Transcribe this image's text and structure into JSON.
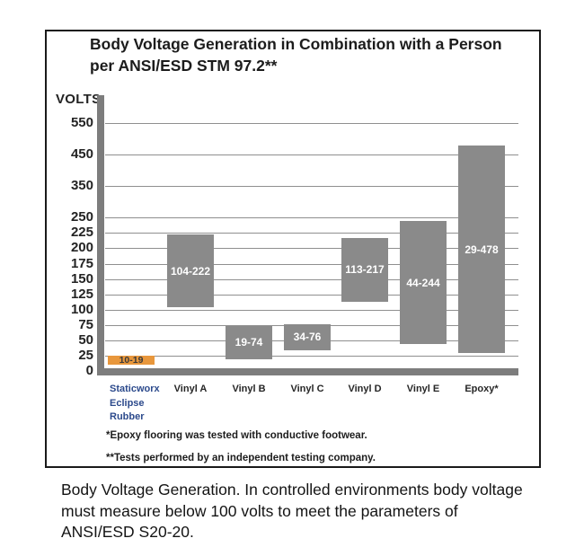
{
  "chart_data": {
    "type": "bar",
    "subtype": "floating_range_bars",
    "title": "Body Voltage Generation in Combination with a Person per ANSI/ESD STM 97.2**",
    "title_lines": [
      "Body Voltage Generation in Combination with a Person",
      "per ANSI/ESD STM 97.2**"
    ],
    "ylabel": "VOLTS",
    "xlabel": "",
    "ylim": [
      0,
      600
    ],
    "yticks": [
      0,
      25,
      50,
      75,
      100,
      125,
      150,
      175,
      200,
      225,
      250,
      350,
      450,
      550
    ],
    "axis_note": "y-axis is compressed above 250 volts (100-volt steps drawn at roughly half the scale of the 25-volt steps)",
    "grid": true,
    "legend_position": "none",
    "categories": [
      "Staticworx Eclipse Rubber",
      "Vinyl A",
      "Vinyl B",
      "Vinyl C",
      "Vinyl D",
      "Vinyl E",
      "Epoxy*"
    ],
    "bars": [
      {
        "category_lines": [
          "Staticworx",
          "Eclipse",
          "Rubber"
        ],
        "low": 10,
        "high": 19,
        "range_label": "10-19",
        "bar_color": "#e8973c",
        "value_color": "#3a3a3a",
        "category_color": "#2c4a8c"
      },
      {
        "category_lines": [
          "Vinyl A"
        ],
        "low": 104,
        "high": 222,
        "range_label": "104-222",
        "bar_color": "#8a8a8a",
        "value_color": "#ffffff",
        "category_color": "#262626"
      },
      {
        "category_lines": [
          "Vinyl B"
        ],
        "low": 19,
        "high": 74,
        "range_label": "19-74",
        "bar_color": "#8a8a8a",
        "value_color": "#ffffff",
        "category_color": "#262626"
      },
      {
        "category_lines": [
          "Vinyl C"
        ],
        "low": 34,
        "high": 76,
        "range_label": "34-76",
        "bar_color": "#8a8a8a",
        "value_color": "#ffffff",
        "category_color": "#262626"
      },
      {
        "category_lines": [
          "Vinyl D"
        ],
        "low": 113,
        "high": 217,
        "range_label": "113-217",
        "bar_color": "#8a8a8a",
        "value_color": "#ffffff",
        "category_color": "#262626"
      },
      {
        "category_lines": [
          "Vinyl E"
        ],
        "low": 44,
        "high": 244,
        "range_label": "44-244",
        "bar_color": "#8a8a8a",
        "value_color": "#ffffff",
        "category_color": "#262626"
      },
      {
        "category_lines": [
          "Epoxy*"
        ],
        "low": 29,
        "high": 478,
        "range_label": "29-478",
        "bar_color": "#8a8a8a",
        "value_color": "#ffffff",
        "category_color": "#262626"
      }
    ],
    "colors": {
      "default_bar": "#8a8a8a",
      "highlight_bar": "#e8973c",
      "gridline": "#8f8f8f",
      "axis": "#7d7d7d",
      "frame_border": "#1a1a1a",
      "background": "#ffffff"
    }
  },
  "footnotes": [
    "*Epoxy flooring was tested with conductive footwear.",
    "**Tests performed by an independent testing company."
  ],
  "caption_lines": [
    "Body Voltage Generation. In controlled environments body",
    "voltage must measure below 100 volts to meet the parameters",
    "of ANSI/ESD S20-20."
  ]
}
